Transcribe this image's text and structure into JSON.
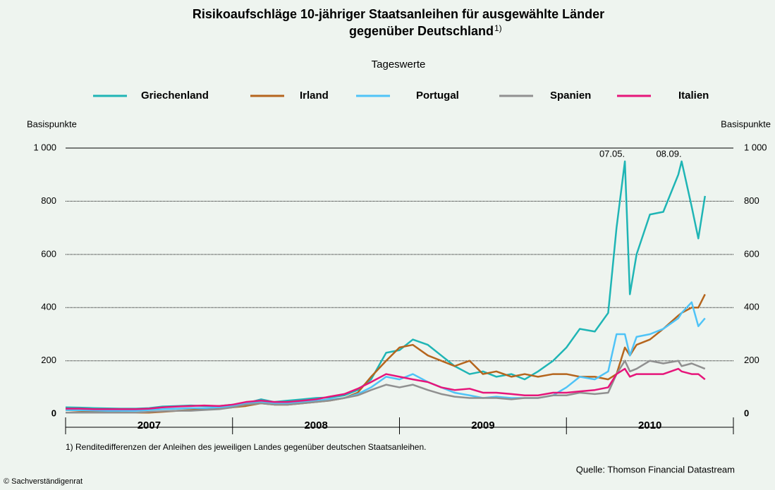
{
  "chart_data": {
    "type": "line",
    "title_line1": "Risikoaufschläge 10-jähriger Staatsanleihen für ausgewählte Länder",
    "title_line2": "gegenüber Deutschland",
    "title_note": "1)",
    "subtitle": "Tageswerte",
    "y_label": "Basispunkte",
    "year_labels": [
      "2007",
      "2008",
      "2009",
      "2010"
    ],
    "xlim": [
      2007,
      2011
    ],
    "ylim": [
      -50,
      1000
    ],
    "yticks": [
      0,
      200,
      400,
      600,
      800,
      {
        "value": 1000,
        "label": "1 000"
      }
    ],
    "grid": true,
    "annotations": [
      {
        "label": "07.05.",
        "x": 2010.35
      },
      {
        "label": "08.09.",
        "x": 2010.69
      }
    ],
    "x": [
      2007.0,
      2007.08,
      2007.17,
      2007.25,
      2007.33,
      2007.42,
      2007.5,
      2007.58,
      2007.67,
      2007.75,
      2007.83,
      2007.92,
      2008.0,
      2008.08,
      2008.17,
      2008.25,
      2008.33,
      2008.42,
      2008.5,
      2008.58,
      2008.67,
      2008.75,
      2008.83,
      2008.92,
      2009.0,
      2009.08,
      2009.17,
      2009.25,
      2009.33,
      2009.42,
      2009.5,
      2009.58,
      2009.67,
      2009.75,
      2009.83,
      2009.92,
      2010.0,
      2010.08,
      2010.17,
      2010.25,
      2010.3,
      2010.35,
      2010.38,
      2010.42,
      2010.5,
      2010.58,
      2010.67,
      2010.69,
      2010.75,
      2010.79,
      2010.83
    ],
    "series": [
      {
        "name": "Griechenland",
        "color": "#1fb5b5",
        "values": [
          25,
          24,
          22,
          21,
          20,
          20,
          22,
          28,
          30,
          32,
          30,
          30,
          35,
          40,
          55,
          45,
          50,
          55,
          60,
          62,
          70,
          90,
          130,
          230,
          240,
          280,
          260,
          220,
          180,
          150,
          160,
          140,
          150,
          130,
          160,
          200,
          250,
          320,
          310,
          380,
          700,
          950,
          450,
          600,
          750,
          760,
          900,
          950,
          780,
          660,
          820
        ]
      },
      {
        "name": "Irland",
        "color": "#b5651d",
        "values": [
          15,
          12,
          10,
          8,
          6,
          5,
          5,
          8,
          12,
          15,
          18,
          20,
          25,
          30,
          40,
          35,
          35,
          40,
          45,
          50,
          60,
          80,
          140,
          200,
          250,
          260,
          220,
          200,
          180,
          200,
          150,
          160,
          140,
          150,
          140,
          150,
          150,
          140,
          140,
          130,
          150,
          250,
          220,
          260,
          280,
          320,
          370,
          380,
          400,
          400,
          450
        ]
      },
      {
        "name": "Portugal",
        "color": "#4fc3f7",
        "values": [
          15,
          14,
          13,
          12,
          12,
          12,
          15,
          18,
          20,
          22,
          22,
          25,
          30,
          40,
          45,
          40,
          40,
          45,
          50,
          55,
          60,
          75,
          100,
          140,
          130,
          150,
          120,
          100,
          80,
          70,
          60,
          65,
          60,
          60,
          60,
          70,
          100,
          140,
          130,
          160,
          300,
          300,
          220,
          290,
          300,
          320,
          360,
          380,
          420,
          330,
          360
        ]
      },
      {
        "name": "Spanien",
        "color": "#909090",
        "values": [
          5,
          5,
          5,
          5,
          5,
          5,
          8,
          10,
          12,
          12,
          15,
          18,
          25,
          35,
          40,
          35,
          35,
          40,
          45,
          50,
          60,
          70,
          90,
          110,
          100,
          110,
          90,
          75,
          65,
          60,
          60,
          60,
          55,
          60,
          60,
          70,
          70,
          80,
          75,
          80,
          150,
          200,
          160,
          170,
          200,
          190,
          200,
          180,
          190,
          180,
          170
        ]
      },
      {
        "name": "Italien",
        "color": "#e6157a",
        "values": [
          20,
          20,
          18,
          18,
          18,
          18,
          20,
          25,
          28,
          30,
          32,
          30,
          35,
          45,
          50,
          45,
          45,
          50,
          55,
          65,
          75,
          95,
          120,
          150,
          140,
          130,
          120,
          100,
          90,
          95,
          80,
          80,
          75,
          70,
          70,
          80,
          80,
          85,
          90,
          100,
          150,
          170,
          140,
          150,
          150,
          150,
          170,
          160,
          150,
          150,
          130
        ]
      }
    ],
    "footnote": "1) Renditedifferenzen der Anleihen des jeweiligen Landes gegenüber deutschen Staatsanleihen.",
    "source": "Quelle: Thomson Financial Datastream",
    "copyright": "© Sachverständigenrat"
  }
}
